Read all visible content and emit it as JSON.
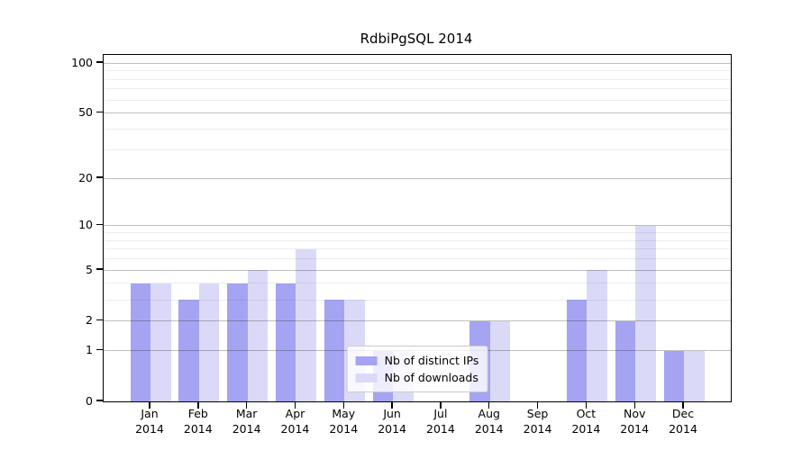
{
  "chart_data": {
    "type": "bar",
    "title": "RdbiPgSQL 2014",
    "categories": [
      {
        "month": "Jan",
        "year": "2014"
      },
      {
        "month": "Feb",
        "year": "2014"
      },
      {
        "month": "Mar",
        "year": "2014"
      },
      {
        "month": "Apr",
        "year": "2014"
      },
      {
        "month": "May",
        "year": "2014"
      },
      {
        "month": "Jun",
        "year": "2014"
      },
      {
        "month": "Jul",
        "year": "2014"
      },
      {
        "month": "Aug",
        "year": "2014"
      },
      {
        "month": "Sep",
        "year": "2014"
      },
      {
        "month": "Oct",
        "year": "2014"
      },
      {
        "month": "Nov",
        "year": "2014"
      },
      {
        "month": "Dec",
        "year": "2014"
      }
    ],
    "series": [
      {
        "name": "Nb of distinct IPs",
        "color": "#a4a4f2",
        "values": [
          4,
          3,
          4,
          4,
          3,
          1,
          0,
          2,
          0,
          3,
          2,
          1
        ]
      },
      {
        "name": "Nb of downloads",
        "color": "#dadaf8",
        "values": [
          4,
          4,
          5,
          7,
          3,
          1,
          0,
          2,
          0,
          5,
          10,
          1
        ]
      }
    ],
    "y_axis": {
      "scale": "log1p",
      "major_ticks": [
        0,
        1,
        2,
        5,
        10,
        20,
        50,
        100
      ],
      "minor_ticks": [
        3,
        4,
        6,
        7,
        8,
        9,
        30,
        40,
        60,
        70,
        80,
        90
      ],
      "ylim": [
        0,
        112
      ]
    },
    "xlabel": "",
    "ylabel": "",
    "grid": true,
    "legend_position": "lower center"
  },
  "colors": {
    "distinct_ips_bar": "#a4a4f2",
    "downloads_bar": "#dadaf8",
    "spine": "#000000",
    "legend_border": "#cccccc"
  }
}
